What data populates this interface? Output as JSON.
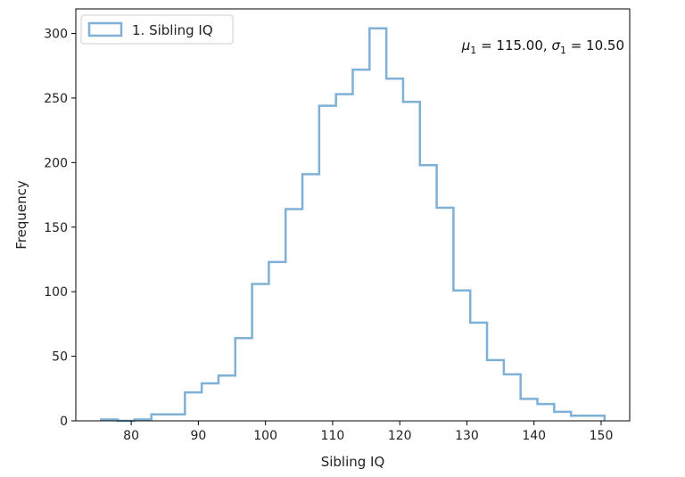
{
  "chart_data": {
    "type": "histogram",
    "style": "step",
    "color": "#7fb0d6",
    "bin_edges": [
      75.5,
      78.0,
      80.5,
      83.0,
      85.5,
      88.0,
      90.5,
      93.0,
      95.5,
      98.0,
      100.5,
      103.0,
      105.5,
      108.0,
      110.5,
      113.0,
      115.5,
      118.0,
      120.5,
      123.0,
      125.5,
      128.0,
      130.5,
      133.0,
      135.5,
      138.0,
      140.5,
      143.0,
      145.5,
      148.0,
      150.5
    ],
    "counts": [
      1,
      0,
      1,
      5,
      5,
      22,
      29,
      35,
      64,
      106,
      123,
      164,
      191,
      244,
      253,
      272,
      304,
      265,
      247,
      198,
      165,
      101,
      76,
      47,
      36,
      17,
      13,
      7,
      4,
      4
    ],
    "xlabel": "Sibling IQ",
    "ylabel": "Frequency",
    "xlim": [
      71.75,
      154.25
    ],
    "ylim": [
      0,
      319
    ],
    "xticks": [
      80,
      90,
      100,
      110,
      120,
      130,
      140,
      150
    ],
    "yticks": [
      0,
      50,
      100,
      150,
      200,
      250,
      300
    ],
    "legend": {
      "placement": "upper-left",
      "entries": [
        "1. Sibling IQ"
      ]
    },
    "annotation": {
      "mu_symbol": "μ",
      "mu_sub": "1",
      "mu_value": " = 115.00, ",
      "sigma_symbol": "σ",
      "sigma_sub": "1",
      "sigma_value": " = 10.50"
    }
  }
}
